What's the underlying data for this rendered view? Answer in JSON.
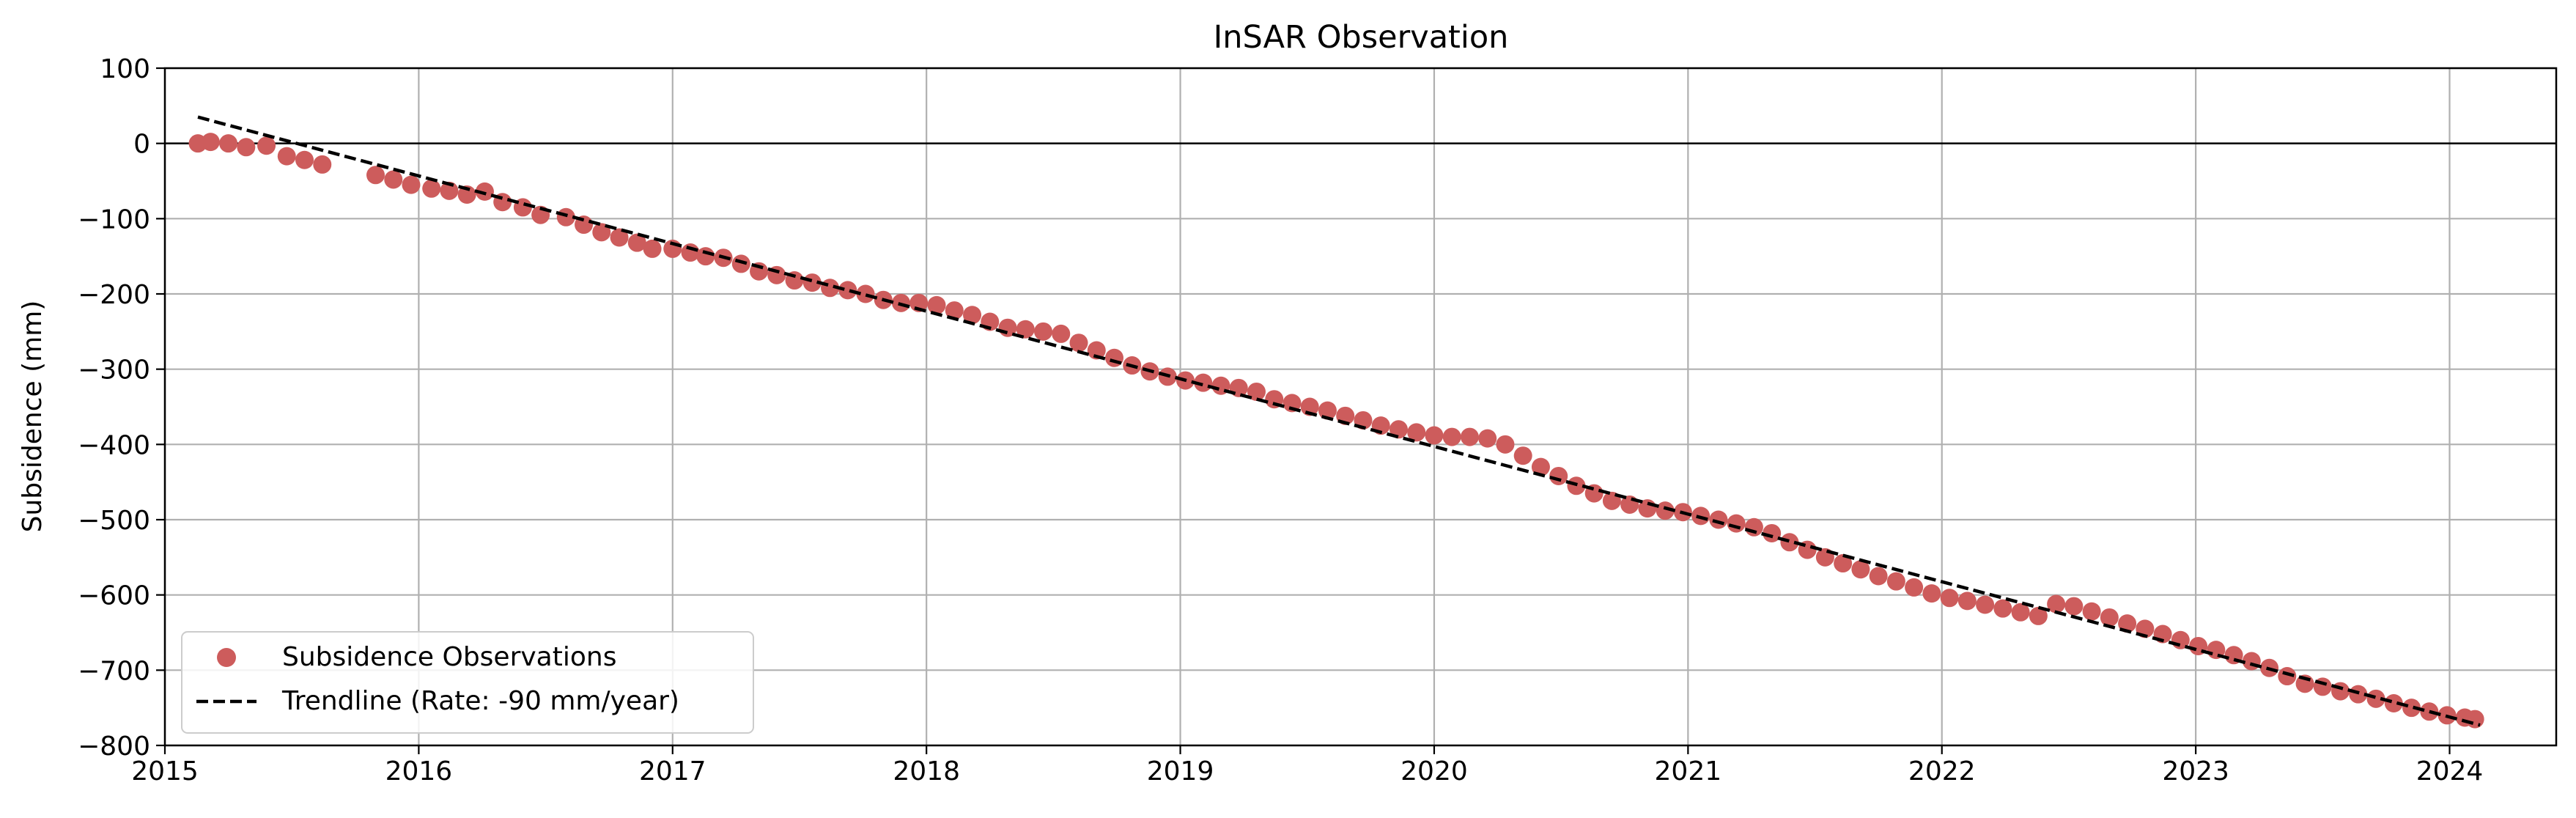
{
  "chart_data": {
    "type": "scatter",
    "title": "InSAR Observation",
    "xlabel": "",
    "ylabel": "Subsidence (mm)",
    "xlim": [
      2015.0,
      2024.42
    ],
    "ylim": [
      -800,
      100
    ],
    "x_ticks": [
      2015,
      2016,
      2017,
      2018,
      2019,
      2020,
      2021,
      2022,
      2023,
      2024
    ],
    "x_tick_labels": [
      "2015",
      "2016",
      "2017",
      "2018",
      "2019",
      "2020",
      "2021",
      "2022",
      "2023",
      "2024"
    ],
    "y_ticks": [
      100,
      0,
      -100,
      -200,
      -300,
      -400,
      -500,
      -600,
      -700,
      -800
    ],
    "y_tick_labels": [
      "100",
      "0",
      "−100",
      "−200",
      "−300",
      "−400",
      "−500",
      "−600",
      "−700",
      "−800"
    ],
    "grid": true,
    "zero_line": true,
    "legend_position": "lower-left",
    "legend": [
      {
        "label": "Subsidence Observations",
        "kind": "marker"
      },
      {
        "label": "Trendline (Rate: -90 mm/year)",
        "kind": "dashed-line"
      }
    ],
    "colors": {
      "observations": "#cd5c5c",
      "trendline": "#000000",
      "grid": "#b0b0b0"
    },
    "trendline": {
      "name": "Trendline (Rate: -90 mm/year)",
      "x": [
        2015.13,
        2024.12
      ],
      "y": [
        35,
        -773
      ]
    },
    "series": [
      {
        "name": "Subsidence Observations",
        "x": [
          2015.13,
          2015.18,
          2015.25,
          2015.32,
          2015.4,
          2015.48,
          2015.55,
          2015.62,
          2015.83,
          2015.9,
          2015.97,
          2016.05,
          2016.12,
          2016.19,
          2016.26,
          2016.33,
          2016.41,
          2016.48,
          2016.58,
          2016.65,
          2016.72,
          2016.79,
          2016.86,
          2016.92,
          2017.0,
          2017.07,
          2017.13,
          2017.2,
          2017.27,
          2017.34,
          2017.41,
          2017.48,
          2017.55,
          2017.62,
          2017.69,
          2017.76,
          2017.83,
          2017.9,
          2017.97,
          2018.04,
          2018.11,
          2018.18,
          2018.25,
          2018.32,
          2018.39,
          2018.46,
          2018.53,
          2018.6,
          2018.67,
          2018.74,
          2018.81,
          2018.88,
          2018.95,
          2019.02,
          2019.09,
          2019.16,
          2019.23,
          2019.3,
          2019.37,
          2019.44,
          2019.51,
          2019.58,
          2019.65,
          2019.72,
          2019.79,
          2019.86,
          2019.93,
          2020.0,
          2020.07,
          2020.14,
          2020.21,
          2020.28,
          2020.35,
          2020.42,
          2020.49,
          2020.56,
          2020.63,
          2020.7,
          2020.77,
          2020.84,
          2020.91,
          2020.98,
          2021.05,
          2021.12,
          2021.19,
          2021.26,
          2021.33,
          2021.4,
          2021.47,
          2021.54,
          2021.61,
          2021.68,
          2021.75,
          2021.82,
          2021.89,
          2021.96,
          2022.03,
          2022.1,
          2022.17,
          2022.24,
          2022.31,
          2022.38,
          2022.45,
          2022.52,
          2022.59,
          2022.66,
          2022.73,
          2022.8,
          2022.87,
          2022.94,
          2023.01,
          2023.08,
          2023.15,
          2023.22,
          2023.29,
          2023.36,
          2023.43,
          2023.5,
          2023.57,
          2023.64,
          2023.71,
          2023.78,
          2023.85,
          2023.92,
          2023.99,
          2024.06,
          2024.1
        ],
        "y": [
          0,
          2,
          0,
          -5,
          -3,
          -17,
          -22,
          -28,
          -42,
          -48,
          -55,
          -60,
          -63,
          -68,
          -64,
          -78,
          -85,
          -95,
          -98,
          -108,
          -118,
          -125,
          -132,
          -140,
          -140,
          -145,
          -150,
          -152,
          -160,
          -170,
          -175,
          -182,
          -185,
          -192,
          -195,
          -200,
          -208,
          -212,
          -212,
          -215,
          -222,
          -228,
          -237,
          -245,
          -247,
          -250,
          -253,
          -265,
          -275,
          -285,
          -295,
          -303,
          -310,
          -315,
          -318,
          -322,
          -325,
          -330,
          -340,
          -345,
          -350,
          -355,
          -362,
          -368,
          -375,
          -380,
          -384,
          -388,
          -390,
          -390,
          -392,
          -400,
          -415,
          -430,
          -442,
          -455,
          -465,
          -475,
          -480,
          -485,
          -488,
          -490,
          -495,
          -500,
          -505,
          -510,
          -518,
          -530,
          -540,
          -550,
          -558,
          -566,
          -575,
          -582,
          -590,
          -598,
          -604,
          -608,
          -613,
          -618,
          -623,
          -628,
          -612,
          -615,
          -622,
          -630,
          -638,
          -645,
          -652,
          -660,
          -668,
          -673,
          -680,
          -688,
          -697,
          -708,
          -718,
          -722,
          -728,
          -732,
          -738,
          -744,
          -750,
          -755,
          -760,
          -763,
          -765
        ]
      }
    ]
  }
}
